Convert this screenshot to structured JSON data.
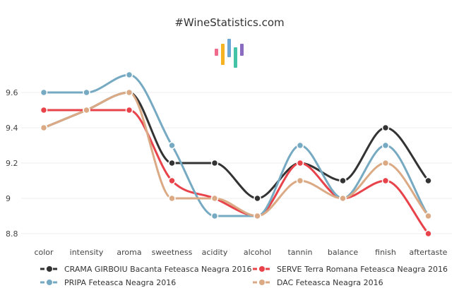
{
  "site_title": "#WineStatistics.com",
  "logo": {
    "icon": "bar-chart-logo-icon",
    "colors": [
      "#f06a8c",
      "#f5b324",
      "#6aa6d6",
      "#43c3a8",
      "#8a6bbf"
    ]
  },
  "chart_data": {
    "type": "line",
    "title": "#WineStatistics.com",
    "xlabel": "",
    "ylabel": "",
    "categories": [
      "color",
      "intensity",
      "aroma",
      "sweetness",
      "acidity",
      "alcohol",
      "tannin",
      "balance",
      "finish",
      "aftertaste"
    ],
    "ylim": [
      8.75,
      9.75
    ],
    "y_ticks": [
      8.8,
      9,
      9.2,
      9.4,
      9.6
    ],
    "y_tick_labels": [
      "8.8",
      "9",
      "9.2",
      "9.4",
      "9.6"
    ],
    "grid": true,
    "legend_position": "bottom",
    "series": [
      {
        "name": "CRAMA GIRBOIU Bacanta Feteasca Neagra 2016",
        "color": "#333333",
        "values": [
          9.4,
          9.5,
          9.6,
          9.2,
          9.2,
          9.0,
          9.2,
          9.1,
          9.4,
          9.1
        ]
      },
      {
        "name": "SERVE Terra Romana Feteasca Neagra 2016",
        "color": "#e8434a",
        "values": [
          9.5,
          9.5,
          9.5,
          9.1,
          9.0,
          8.9,
          9.2,
          9.0,
          9.1,
          8.8
        ]
      },
      {
        "name": "PRIPA Feteasca Neagra 2016",
        "color": "#76a9c2",
        "values": [
          9.6,
          9.6,
          9.7,
          9.3,
          8.9,
          8.9,
          9.3,
          9.0,
          9.3,
          8.9
        ]
      },
      {
        "name": "DAC Feteasca Neagra 2016",
        "color": "#dbaa85",
        "values": [
          9.4,
          9.5,
          9.6,
          9.0,
          9.0,
          8.9,
          9.1,
          9.0,
          9.2,
          8.9
        ]
      }
    ]
  }
}
